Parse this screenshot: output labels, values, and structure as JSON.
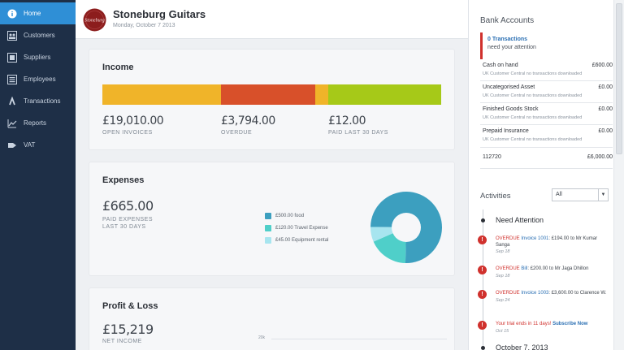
{
  "sidebar": {
    "items": [
      {
        "label": "Home",
        "icon": "info-icon",
        "active": true
      },
      {
        "label": "Customers",
        "icon": "customers-icon"
      },
      {
        "label": "Suppliers",
        "icon": "suppliers-icon"
      },
      {
        "label": "Employees",
        "icon": "employees-icon"
      },
      {
        "label": "Transactions",
        "icon": "transactions-icon"
      },
      {
        "label": "Reports",
        "icon": "reports-icon"
      },
      {
        "label": "VAT",
        "icon": "vat-icon"
      }
    ]
  },
  "header": {
    "company": "Stoneburg Guitars",
    "date": "Monday, October 7 2013",
    "logo_text": "Stoneburg"
  },
  "income": {
    "title": "Income",
    "open_amount": "£19,010.00",
    "open_label": "OPEN INVOICES",
    "overdue_amount": "£3,794.00",
    "overdue_label": "OVERDUE",
    "paid_amount": "£12.00",
    "paid_label": "PAID LAST 30 DAYS",
    "colors": {
      "open": "#f0b429",
      "overdue": "#d8502a",
      "paid": "#a6c918"
    }
  },
  "expenses": {
    "title": "Expenses",
    "amount": "£665.00",
    "caption_line1": "PAID EXPENSES",
    "caption_line2": "LAST 30 DAYS",
    "legend": [
      {
        "label": "£500.00 food",
        "value": 500,
        "color": "#3c9fbf"
      },
      {
        "label": "£120.00 Travel Expense",
        "value": 120,
        "color": "#4fcfc9"
      },
      {
        "label": "£45.00 Equipment rental",
        "value": 45,
        "color": "#a7e5ef"
      }
    ]
  },
  "profit_loss": {
    "title": "Profit & Loss",
    "amount": "£15,219",
    "caption": "NET INCOME",
    "tick": "20k"
  },
  "bank": {
    "title": "Bank Accounts",
    "attention_line1": "0 Transactions",
    "attention_line2": "need your attention",
    "accounts": [
      {
        "name": "Cash on hand",
        "amount": "£600.00",
        "note": "UK Customer Central no transactions downloaded"
      },
      {
        "name": "Uncategorised Asset",
        "amount": "£0.00",
        "note": "UK Customer Central no transactions downloaded"
      },
      {
        "name": "Finished Goods Stock",
        "amount": "£0.00",
        "note": "UK Customer Central no transactions downloaded"
      },
      {
        "name": "Prepaid Insurance",
        "amount": "£0.00",
        "note": "UK Customer Central no transactions downloaded"
      },
      {
        "name": "112720",
        "amount": "£6,000.00",
        "note": ""
      }
    ]
  },
  "activities": {
    "title": "Activities",
    "filter": "All",
    "need_attention": "Need Attention",
    "items": [
      {
        "status": "OVERDUE",
        "link": "Invoice 1001",
        "rest": ": £194.00 to Mr Kumar Sanga",
        "date": "Sep 18"
      },
      {
        "status": "OVERDUE",
        "link": "Bill",
        "rest": ": £200.00 to Mr Jaga Dhillon",
        "date": "Sep 18"
      },
      {
        "status": "OVERDUE",
        "link": "Invoice 1003",
        "rest": ": £3,600.00 to Clarence W.",
        "date": "Sep 24"
      },
      {
        "status": "Your trial ends in 11 days!",
        "link": "Subscribe Now",
        "rest": "",
        "date": "Oct 15"
      }
    ],
    "date_heading": "October 7, 2013"
  }
}
